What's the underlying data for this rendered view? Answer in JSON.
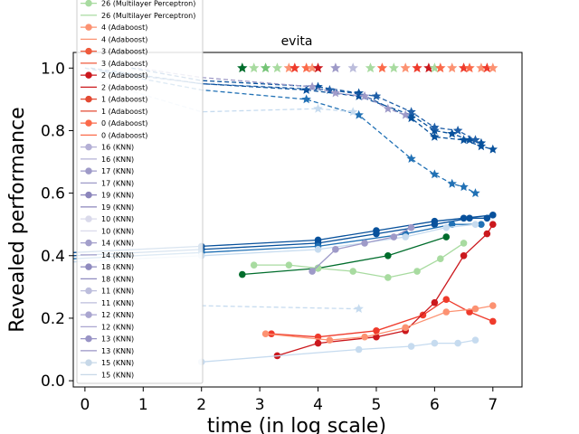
{
  "chart_data": {
    "type": "line",
    "title": "evita",
    "xlabel": "time (in log scale)",
    "ylabel": "Revealed performance",
    "xlim": [
      -0.2,
      7.5
    ],
    "ylim": [
      -0.02,
      1.05
    ],
    "xticks": [
      "0",
      "1",
      "2",
      "3",
      "4",
      "5",
      "6",
      "7"
    ],
    "yticks": [
      "0.0",
      "0.2",
      "0.4",
      "0.6",
      "0.8",
      "1.0"
    ],
    "grid": false,
    "legend_position": "top-left",
    "legend": [
      {
        "label": "26 (Multilayer Perceptron)",
        "color": "#a8dba0",
        "marker": "circle"
      },
      {
        "label": "26 (Multilayer Perceptron)",
        "color": "#a8dba0",
        "marker": "line"
      },
      {
        "label": "4 (Adaboost)",
        "color": "#fc9272",
        "marker": "circle"
      },
      {
        "label": "4 (Adaboost)",
        "color": "#fc9272",
        "marker": "line"
      },
      {
        "label": "3 (Adaboost)",
        "color": "#ef5a3c",
        "marker": "circle"
      },
      {
        "label": "3 (Adaboost)",
        "color": "#ef5a3c",
        "marker": "line"
      },
      {
        "label": "2 (Adaboost)",
        "color": "#cb181d",
        "marker": "circle"
      },
      {
        "label": "2 (Adaboost)",
        "color": "#cb181d",
        "marker": "line"
      },
      {
        "label": "1 (Adaboost)",
        "color": "#e34a33",
        "marker": "circle"
      },
      {
        "label": "1 (Adaboost)",
        "color": "#e34a33",
        "marker": "line"
      },
      {
        "label": "0 (Adaboost)",
        "color": "#fb6a4a",
        "marker": "circle"
      },
      {
        "label": "0 (Adaboost)",
        "color": "#fb6a4a",
        "marker": "line"
      },
      {
        "label": "16 (KNN)",
        "color": "#b4b0d6",
        "marker": "circle"
      },
      {
        "label": "16 (KNN)",
        "color": "#b4b0d6",
        "marker": "line"
      },
      {
        "label": "17 (KNN)",
        "color": "#9e9ac8",
        "marker": "circle"
      },
      {
        "label": "17 (KNN)",
        "color": "#9e9ac8",
        "marker": "line"
      },
      {
        "label": "19 (KNN)",
        "color": "#8c86bc",
        "marker": "circle"
      },
      {
        "label": "19 (KNN)",
        "color": "#8c86bc",
        "marker": "line"
      },
      {
        "label": "10 (KNN)",
        "color": "#dadaeb",
        "marker": "circle"
      },
      {
        "label": "10 (KNN)",
        "color": "#dadaeb",
        "marker": "line"
      },
      {
        "label": "14 (KNN)",
        "color": "#a39fcb",
        "marker": "circle"
      },
      {
        "label": "14 (KNN)",
        "color": "#a39fcb",
        "marker": "line"
      },
      {
        "label": "18 (KNN)",
        "color": "#8f8bbf",
        "marker": "circle"
      },
      {
        "label": "18 (KNN)",
        "color": "#8f8bbf",
        "marker": "line"
      },
      {
        "label": "11 (KNN)",
        "color": "#bcbddc",
        "marker": "circle"
      },
      {
        "label": "11 (KNN)",
        "color": "#bcbddc",
        "marker": "line"
      },
      {
        "label": "12 (KNN)",
        "color": "#aaa6d0",
        "marker": "circle"
      },
      {
        "label": "12 (KNN)",
        "color": "#aaa6d0",
        "marker": "line"
      },
      {
        "label": "13 (KNN)",
        "color": "#9994c6",
        "marker": "circle"
      },
      {
        "label": "13 (KNN)",
        "color": "#9994c6",
        "marker": "line"
      },
      {
        "label": "15 (KNN)",
        "color": "#c7d8e8",
        "marker": "circle"
      },
      {
        "label": "15 (KNN)",
        "color": "#c7d8e8",
        "marker": "line"
      }
    ],
    "series": [
      {
        "color": "#08519c",
        "dash": true,
        "marker": "star",
        "points": [
          [
            0.1,
            1.0
          ],
          [
            2.0,
            0.95
          ],
          [
            3.8,
            0.93
          ],
          [
            4.7,
            0.91
          ],
          [
            5.6,
            0.85
          ],
          [
            6.0,
            0.8
          ],
          [
            6.3,
            0.79
          ],
          [
            6.6,
            0.77
          ],
          [
            6.8,
            0.76
          ]
        ]
      },
      {
        "color": "#2171b5",
        "dash": true,
        "marker": "star",
        "points": [
          [
            0.0,
            1.0
          ],
          [
            2.0,
            0.93
          ],
          [
            3.8,
            0.9
          ],
          [
            4.7,
            0.85
          ],
          [
            5.6,
            0.71
          ],
          [
            6.0,
            0.66
          ],
          [
            6.3,
            0.63
          ],
          [
            6.5,
            0.62
          ],
          [
            6.7,
            0.6
          ]
        ]
      },
      {
        "color": "#08519c",
        "dash": true,
        "marker": "star",
        "points": [
          [
            0.8,
            1.0
          ],
          [
            2.0,
            0.96
          ],
          [
            4.0,
            0.94
          ],
          [
            4.7,
            0.92
          ],
          [
            5.6,
            0.84
          ],
          [
            6.0,
            0.78
          ],
          [
            6.5,
            0.77
          ],
          [
            6.8,
            0.75
          ],
          [
            7.0,
            0.74
          ]
        ]
      },
      {
        "color": "#1f5fa8",
        "dash": true,
        "marker": "star",
        "points": [
          [
            0.3,
            0.99
          ],
          [
            2.0,
            0.95
          ],
          [
            4.2,
            0.93
          ],
          [
            5.0,
            0.91
          ],
          [
            5.6,
            0.86
          ],
          [
            6.0,
            0.81
          ],
          [
            6.4,
            0.8
          ],
          [
            6.7,
            0.77
          ]
        ]
      },
      {
        "color": "#9e9ac8",
        "dash": true,
        "marker": "star",
        "points": [
          [
            0.9,
            1.0
          ],
          [
            2.0,
            0.97
          ],
          [
            3.9,
            0.94
          ],
          [
            4.3,
            0.92
          ],
          [
            4.8,
            0.91
          ],
          [
            5.2,
            0.87
          ],
          [
            5.5,
            0.85
          ]
        ]
      },
      {
        "color": "#c6dbef",
        "dash": true,
        "marker": "star",
        "points": [
          [
            0.0,
            0.97
          ],
          [
            2.0,
            0.86
          ],
          [
            4.0,
            0.87
          ],
          [
            4.6,
            0.86
          ]
        ]
      },
      {
        "color": "#c6dbef",
        "dash": true,
        "marker": "star",
        "points": [
          [
            2.0,
            0.24
          ],
          [
            4.7,
            0.23
          ]
        ]
      },
      {
        "color": "#08519c",
        "dash": false,
        "marker": "circle",
        "points": [
          [
            -0.2,
            0.41
          ],
          [
            2.0,
            0.43
          ],
          [
            4.0,
            0.45
          ],
          [
            5.0,
            0.48
          ],
          [
            6.0,
            0.51
          ],
          [
            6.5,
            0.52
          ],
          [
            7.0,
            0.53
          ]
        ]
      },
      {
        "color": "#08519c",
        "dash": false,
        "marker": "circle",
        "points": [
          [
            -0.2,
            0.4
          ],
          [
            2.0,
            0.42
          ],
          [
            4.0,
            0.44
          ],
          [
            5.0,
            0.47
          ],
          [
            6.0,
            0.5
          ],
          [
            6.6,
            0.52
          ],
          [
            6.9,
            0.52
          ]
        ]
      },
      {
        "color": "#2171b5",
        "dash": false,
        "marker": "circle",
        "points": [
          [
            -0.2,
            0.39
          ],
          [
            2.0,
            0.41
          ],
          [
            4.0,
            0.43
          ],
          [
            5.5,
            0.47
          ],
          [
            6.3,
            0.5
          ],
          [
            6.8,
            0.5
          ]
        ]
      },
      {
        "color": "#c6dbef",
        "dash": false,
        "marker": "circle",
        "points": [
          [
            -0.2,
            0.38
          ],
          [
            2.0,
            0.4
          ],
          [
            4.0,
            0.42
          ],
          [
            5.5,
            0.46
          ],
          [
            6.2,
            0.49
          ],
          [
            6.7,
            0.5
          ]
        ]
      },
      {
        "color": "#006d2c",
        "dash": false,
        "marker": "circle",
        "points": [
          [
            2.7,
            0.34
          ],
          [
            4.0,
            0.36
          ],
          [
            5.2,
            0.4
          ],
          [
            6.2,
            0.46
          ]
        ]
      },
      {
        "color": "#a8dba0",
        "dash": false,
        "marker": "circle",
        "points": [
          [
            2.9,
            0.37
          ],
          [
            3.5,
            0.37
          ],
          [
            4.0,
            0.36
          ],
          [
            4.6,
            0.35
          ],
          [
            5.2,
            0.33
          ],
          [
            5.7,
            0.35
          ],
          [
            6.1,
            0.39
          ],
          [
            6.5,
            0.44
          ]
        ]
      },
      {
        "color": "#9e9ac8",
        "dash": false,
        "marker": "circle",
        "points": [
          [
            3.9,
            0.35
          ],
          [
            4.3,
            0.42
          ],
          [
            4.8,
            0.44
          ],
          [
            5.3,
            0.46
          ],
          [
            5.6,
            0.49
          ]
        ]
      },
      {
        "color": "#ef3b2c",
        "dash": false,
        "marker": "circle",
        "points": [
          [
            3.2,
            0.15
          ],
          [
            4.0,
            0.14
          ],
          [
            5.0,
            0.16
          ],
          [
            5.8,
            0.21
          ],
          [
            6.2,
            0.26
          ],
          [
            6.6,
            0.22
          ],
          [
            7.0,
            0.19
          ]
        ]
      },
      {
        "color": "#cb181d",
        "dash": false,
        "marker": "circle",
        "points": [
          [
            3.3,
            0.08
          ],
          [
            4.0,
            0.12
          ],
          [
            5.0,
            0.14
          ],
          [
            5.5,
            0.16
          ],
          [
            6.0,
            0.25
          ],
          [
            6.5,
            0.4
          ],
          [
            6.9,
            0.47
          ],
          [
            7.0,
            0.5
          ]
        ]
      },
      {
        "color": "#fc9272",
        "dash": false,
        "marker": "circle",
        "points": [
          [
            3.1,
            0.15
          ],
          [
            4.2,
            0.13
          ],
          [
            4.8,
            0.14
          ],
          [
            5.5,
            0.17
          ],
          [
            6.2,
            0.22
          ],
          [
            6.7,
            0.23
          ],
          [
            7.0,
            0.24
          ]
        ]
      },
      {
        "color": "#c6dbef",
        "dash": false,
        "marker": "circle",
        "points": [
          [
            2.0,
            0.06
          ],
          [
            4.7,
            0.1
          ],
          [
            5.6,
            0.11
          ],
          [
            6.0,
            0.12
          ],
          [
            6.4,
            0.12
          ],
          [
            6.7,
            0.13
          ]
        ]
      }
    ],
    "top_stars": {
      "y": 1.0,
      "x": [
        2.7,
        2.9,
        3.1,
        3.3,
        3.5,
        3.6,
        3.8,
        3.9,
        4.0,
        4.3,
        4.6,
        4.9,
        5.1,
        5.3,
        5.5,
        5.7,
        5.9,
        6.0,
        6.1,
        6.3,
        6.5,
        6.6,
        6.8,
        6.9,
        7.0
      ],
      "colors": [
        "#006d2c",
        "#a8dba0",
        "#74c476",
        "#a8dba0",
        "#fc9272",
        "#ef3b2c",
        "#fb6a4a",
        "#fc9272",
        "#cb181d",
        "#9e9ac8",
        "#bcbddc",
        "#a8dba0",
        "#fb6a4a",
        "#a8dba0",
        "#fc9272",
        "#ef3b2c",
        "#cb181d",
        "#a8dba0",
        "#fb6a4a",
        "#fc9272",
        "#ef3b2c",
        "#fb6a4a",
        "#fc9272",
        "#ef3b2c",
        "#fc9272"
      ]
    }
  }
}
